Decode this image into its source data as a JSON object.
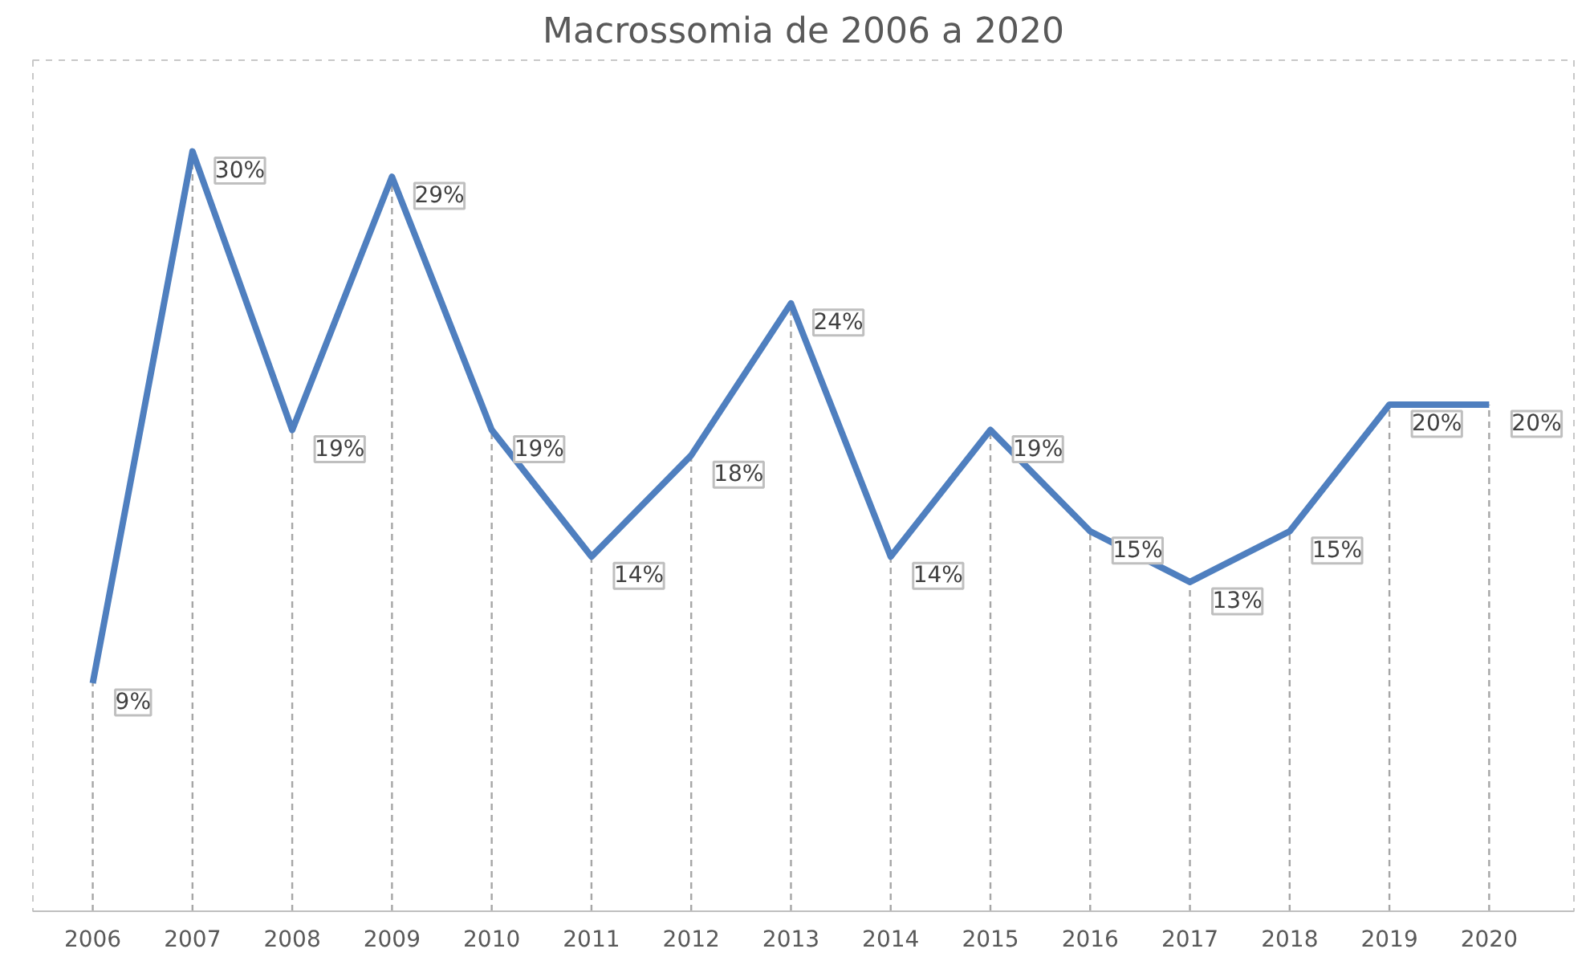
{
  "chart_data": {
    "type": "line",
    "title": "Macrossomia de 2006 a 2020",
    "categories": [
      "2006",
      "2007",
      "2008",
      "2009",
      "2010",
      "2011",
      "2012",
      "2013",
      "2014",
      "2015",
      "2016",
      "2017",
      "2018",
      "2019",
      "2020"
    ],
    "series": [
      {
        "color": "#4f7fbf",
        "values": [
          9,
          30,
          19,
          29,
          19,
          14,
          18,
          24,
          14,
          19,
          15,
          13,
          15,
          20,
          20
        ],
        "value_labels": [
          "9%",
          "30%",
          "19%",
          "29%",
          "19%",
          "14%",
          "18%",
          "24%",
          "14%",
          "19%",
          "15%",
          "13%",
          "15%",
          "20%",
          "20%"
        ]
      }
    ],
    "marker": "none",
    "line_style": "solid",
    "grid": "x"
  }
}
